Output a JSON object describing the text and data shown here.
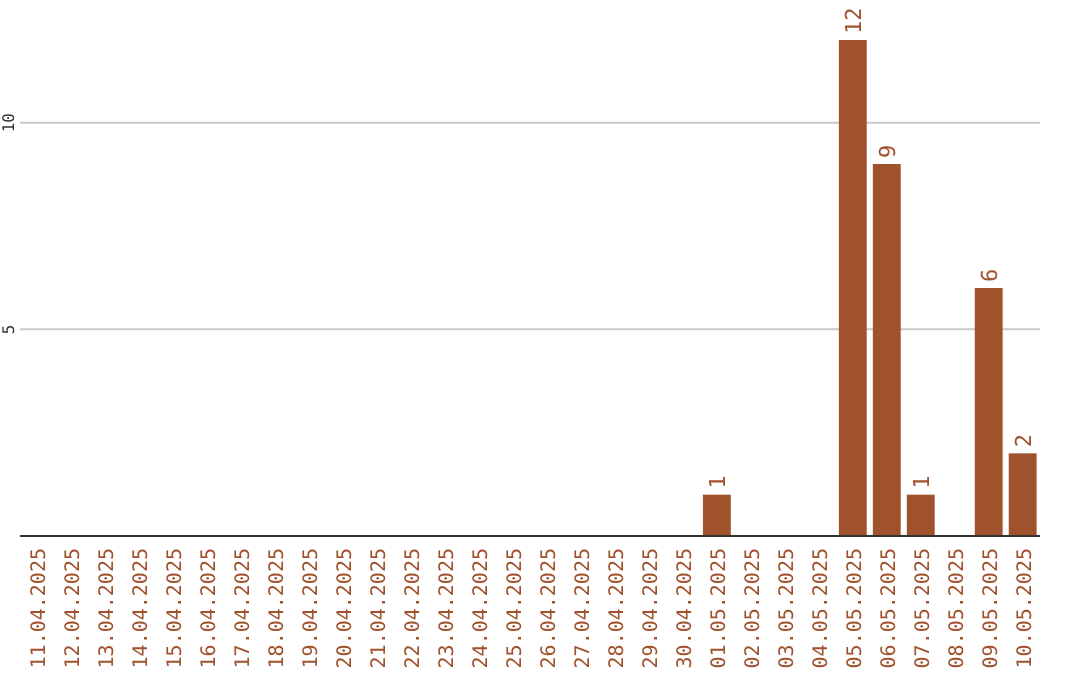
{
  "chart_data": {
    "type": "bar",
    "categories": [
      "11.04.2025",
      "12.04.2025",
      "13.04.2025",
      "14.04.2025",
      "15.04.2025",
      "16.04.2025",
      "17.04.2025",
      "18.04.2025",
      "19.04.2025",
      "20.04.2025",
      "21.04.2025",
      "22.04.2025",
      "23.04.2025",
      "24.04.2025",
      "25.04.2025",
      "26.04.2025",
      "27.04.2025",
      "28.04.2025",
      "29.04.2025",
      "30.04.2025",
      "01.05.2025",
      "02.05.2025",
      "03.05.2025",
      "04.05.2025",
      "05.05.2025",
      "06.05.2025",
      "07.05.2025",
      "08.05.2025",
      "09.05.2025",
      "10.05.2025"
    ],
    "values": [
      null,
      null,
      null,
      null,
      null,
      null,
      null,
      null,
      null,
      null,
      null,
      null,
      null,
      null,
      null,
      null,
      null,
      null,
      null,
      null,
      1,
      null,
      null,
      null,
      12,
      9,
      1,
      null,
      6,
      2
    ],
    "color": "#a0522d",
    "ylim": [
      0,
      12
    ],
    "yticks": [
      5,
      10
    ],
    "grid": "y",
    "data_labels": true
  }
}
